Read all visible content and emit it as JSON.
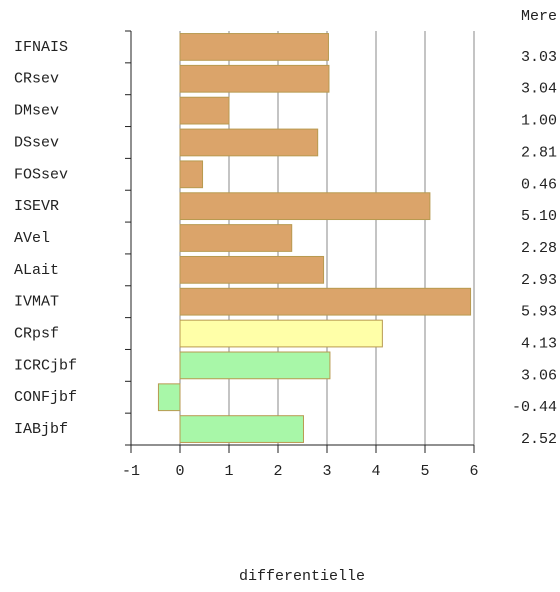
{
  "chart_data": {
    "type": "barh",
    "xlabel": "differentielle",
    "column_header": "Mere",
    "categories": [
      "IFNAIS",
      "CRsev",
      "DMsev",
      "DSsev",
      "FOSsev",
      "ISEVR",
      "AVel",
      "ALait",
      "IVMAT",
      "CRpsf",
      "ICRCjbf",
      "CONFjbf",
      "IABjbf"
    ],
    "values": [
      3.03,
      3.04,
      1.0,
      2.81,
      0.46,
      5.1,
      2.28,
      2.93,
      5.93,
      4.13,
      3.06,
      -0.44,
      2.52
    ],
    "value_labels": [
      "3.03",
      "3.04",
      "1.00",
      "2.81",
      "0.46",
      "5.10",
      "2.28",
      "2.93",
      "5.93",
      "4.13",
      "3.06",
      "-0.44",
      "2.52"
    ],
    "colors": [
      "#dba46a",
      "#dba46a",
      "#dba46a",
      "#dba46a",
      "#dba46a",
      "#dba46a",
      "#dba46a",
      "#dba46a",
      "#dba46a",
      "#ffffa8",
      "#a8f7a8",
      "#a8f7a8",
      "#a8f7a8"
    ],
    "xlim": [
      -1,
      6
    ],
    "xticks": [
      -1,
      0,
      1,
      2,
      3,
      4,
      5,
      6
    ],
    "grid": true
  }
}
